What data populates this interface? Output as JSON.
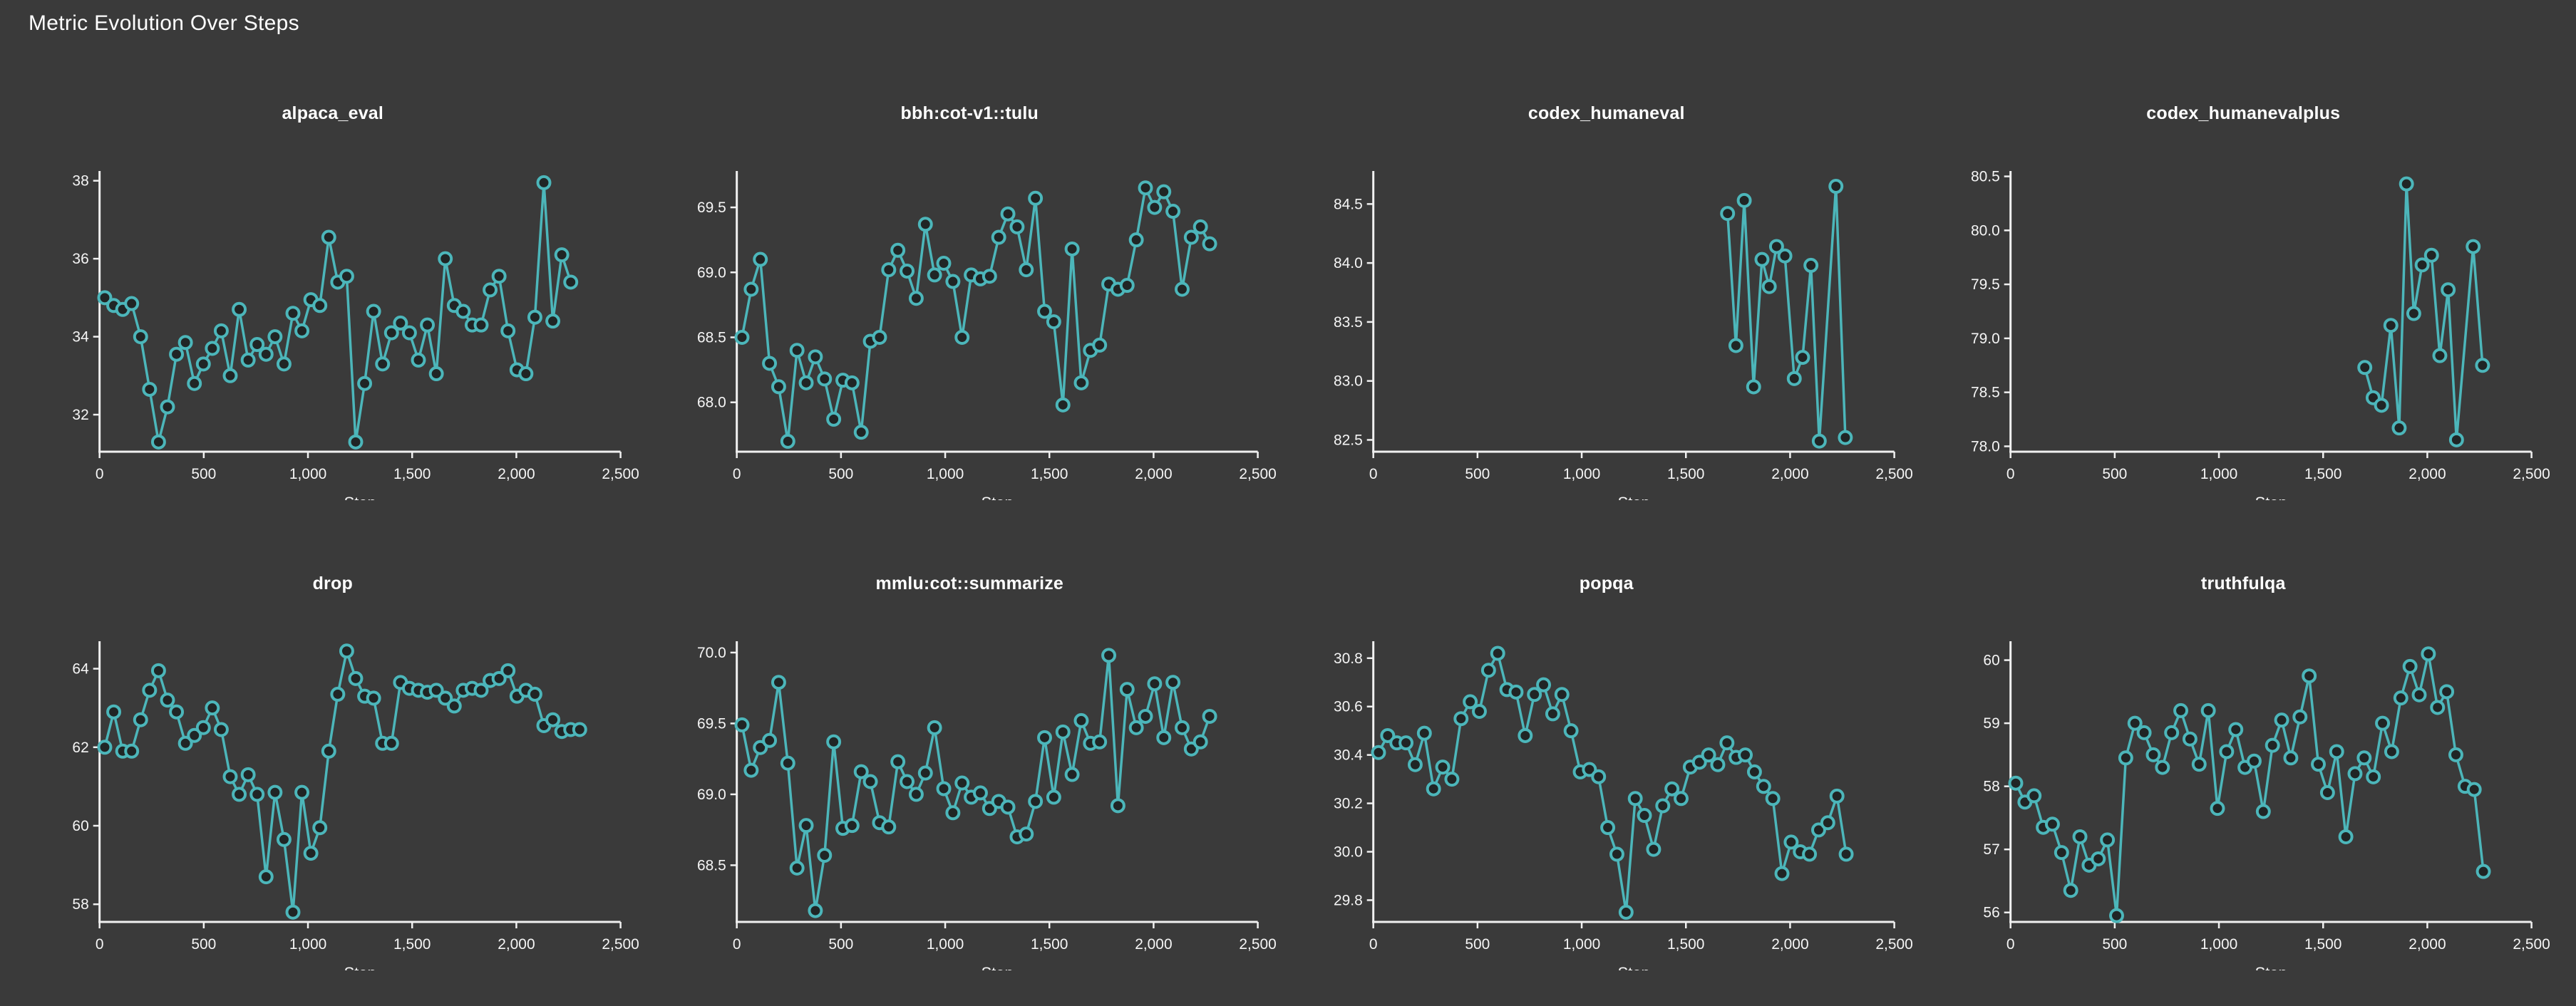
{
  "page": {
    "title": "Metric Evolution Over Steps"
  },
  "theme": {
    "background": "#3a3a3a",
    "line_color": "#4cb6ba",
    "marker_fill": "#202525",
    "axis_color": "#f0f0f0",
    "tick_label_color": "#f5f5f5",
    "title_color": "#ffffff"
  },
  "axis": {
    "xlabel": "Step",
    "xlim": [
      0,
      2500
    ],
    "x_ticks": [
      0,
      500,
      1000,
      1500,
      2000,
      2500
    ],
    "x_tick_labels": [
      "0",
      "500",
      "1,000",
      "1,500",
      "2,000",
      "2,500"
    ]
  },
  "chart_data": [
    {
      "type": "line",
      "title": "alpaca_eval",
      "xlabel": "Step",
      "ylim": [
        31.05,
        38.25
      ],
      "y_ticks": [
        32,
        34,
        36,
        38
      ],
      "y_tick_labels": [
        "32",
        "34",
        "36",
        "38"
      ],
      "x": [
        25,
        68,
        111,
        154,
        197,
        240,
        283,
        326,
        369,
        412,
        455,
        498,
        541,
        584,
        627,
        670,
        713,
        756,
        799,
        842,
        885,
        928,
        971,
        1014,
        1057,
        1100,
        1143,
        1186,
        1229,
        1272,
        1315,
        1358,
        1401,
        1444,
        1487,
        1530,
        1573,
        1616,
        1659,
        1702,
        1745,
        1788,
        1831,
        1874,
        1917,
        1960,
        2003,
        2046,
        2089,
        2132,
        2175,
        2218,
        2261
      ],
      "y": [
        35.0,
        34.8,
        34.7,
        34.85,
        34.0,
        32.65,
        31.3,
        32.2,
        33.55,
        33.85,
        32.8,
        33.3,
        33.7,
        34.15,
        33.0,
        34.7,
        33.4,
        33.8,
        33.55,
        34.0,
        33.3,
        34.6,
        34.15,
        34.95,
        34.8,
        36.55,
        35.4,
        35.55,
        31.3,
        32.8,
        34.65,
        33.3,
        34.1,
        34.35,
        34.1,
        33.4,
        34.3,
        33.05,
        36.0,
        34.8,
        34.65,
        34.3,
        34.3,
        35.2,
        35.55,
        34.15,
        33.15,
        33.05,
        34.5,
        37.95,
        34.4,
        36.1,
        35.4
      ]
    },
    {
      "type": "line",
      "title": "bbh:cot-v1::tulu",
      "xlabel": "Step",
      "ylim": [
        67.62,
        69.78
      ],
      "y_ticks": [
        68.0,
        68.5,
        69.0,
        69.5
      ],
      "y_tick_labels": [
        "68.0",
        "68.5",
        "69.0",
        "69.5"
      ],
      "x": [
        25,
        69,
        113,
        157,
        201,
        245,
        289,
        333,
        377,
        421,
        465,
        509,
        553,
        597,
        641,
        685,
        729,
        773,
        817,
        861,
        905,
        949,
        993,
        1037,
        1081,
        1125,
        1169,
        1213,
        1257,
        1301,
        1345,
        1389,
        1433,
        1477,
        1521,
        1565,
        1609,
        1653,
        1697,
        1741,
        1785,
        1829,
        1873,
        1917,
        1961,
        2005,
        2049,
        2093,
        2137,
        2181,
        2225,
        2269
      ],
      "y": [
        68.5,
        68.87,
        69.1,
        68.3,
        68.12,
        67.7,
        68.4,
        68.15,
        68.35,
        68.18,
        67.87,
        68.17,
        68.15,
        67.77,
        68.47,
        68.5,
        69.02,
        69.17,
        69.01,
        68.8,
        69.37,
        68.98,
        69.07,
        68.93,
        68.5,
        68.98,
        68.95,
        68.97,
        69.27,
        69.45,
        69.35,
        69.02,
        69.57,
        68.7,
        68.62,
        67.98,
        69.18,
        68.15,
        68.4,
        68.44,
        68.91,
        68.87,
        68.9,
        69.25,
        69.65,
        69.5,
        69.62,
        69.47,
        68.87,
        69.27,
        69.35,
        69.22
      ]
    },
    {
      "type": "line",
      "title": "codex_humaneval",
      "xlabel": "Step",
      "ylim": [
        82.4,
        84.78
      ],
      "y_ticks": [
        82.5,
        83.0,
        83.5,
        84.0,
        84.5
      ],
      "y_tick_labels": [
        "82.5",
        "83.0",
        "83.5",
        "84.0",
        "84.5"
      ],
      "x": [
        1700,
        1740,
        1780,
        1825,
        1865,
        1900,
        1935,
        1975,
        2020,
        2060,
        2100,
        2140,
        2220,
        2265
      ],
      "y": [
        84.42,
        83.3,
        84.53,
        82.95,
        84.03,
        83.8,
        84.14,
        84.06,
        83.02,
        83.2,
        83.98,
        82.49,
        84.65,
        82.52
      ]
    },
    {
      "type": "line",
      "title": "codex_humanevalplus",
      "xlabel": "Step",
      "ylim": [
        77.95,
        80.55
      ],
      "y_ticks": [
        78.0,
        78.5,
        79.0,
        79.5,
        80.0,
        80.5
      ],
      "y_tick_labels": [
        "78.0",
        "78.5",
        "79.0",
        "79.5",
        "80.0",
        "80.5"
      ],
      "x": [
        1700,
        1740,
        1780,
        1825,
        1865,
        1900,
        1935,
        1975,
        2020,
        2060,
        2100,
        2140,
        2220,
        2265
      ],
      "y": [
        78.73,
        78.45,
        78.38,
        79.12,
        78.17,
        80.43,
        79.23,
        79.68,
        79.77,
        78.84,
        79.45,
        78.06,
        79.85,
        78.75
      ]
    },
    {
      "type": "line",
      "title": "drop",
      "xlabel": "Step",
      "ylim": [
        57.55,
        64.7
      ],
      "y_ticks": [
        58,
        60,
        62,
        64
      ],
      "y_tick_labels": [
        "58",
        "60",
        "62",
        "64"
      ],
      "x": [
        25,
        68,
        111,
        154,
        197,
        240,
        283,
        326,
        369,
        412,
        455,
        498,
        541,
        584,
        627,
        670,
        713,
        756,
        799,
        842,
        885,
        928,
        971,
        1014,
        1057,
        1100,
        1143,
        1186,
        1229,
        1272,
        1315,
        1358,
        1401,
        1444,
        1487,
        1530,
        1573,
        1616,
        1659,
        1702,
        1745,
        1788,
        1831,
        1874,
        1917,
        1960,
        2003,
        2046,
        2089,
        2132,
        2175,
        2218,
        2261,
        2304
      ],
      "y": [
        62.0,
        62.9,
        61.9,
        61.9,
        62.7,
        63.45,
        63.95,
        63.2,
        62.9,
        62.1,
        62.3,
        62.5,
        63.0,
        62.45,
        61.25,
        60.8,
        61.3,
        60.8,
        58.7,
        60.85,
        59.65,
        57.8,
        60.85,
        59.3,
        59.95,
        61.9,
        63.35,
        64.45,
        63.75,
        63.3,
        63.25,
        62.1,
        62.1,
        63.65,
        63.5,
        63.45,
        63.4,
        63.45,
        63.25,
        63.05,
        63.45,
        63.5,
        63.45,
        63.7,
        63.75,
        63.95,
        63.3,
        63.45,
        63.35,
        62.55,
        62.7,
        62.4,
        62.45,
        62.45
      ]
    },
    {
      "type": "line",
      "title": "mmlu:cot::summarize",
      "xlabel": "Step",
      "ylim": [
        68.1,
        70.08
      ],
      "y_ticks": [
        68.5,
        69.0,
        69.5,
        70.0
      ],
      "y_tick_labels": [
        "68.5",
        "69.0",
        "69.5",
        "70.0"
      ],
      "x": [
        25,
        69,
        113,
        157,
        201,
        245,
        289,
        333,
        377,
        421,
        465,
        509,
        553,
        597,
        641,
        685,
        729,
        773,
        817,
        861,
        905,
        949,
        993,
        1037,
        1081,
        1125,
        1169,
        1213,
        1257,
        1301,
        1345,
        1389,
        1433,
        1477,
        1521,
        1565,
        1609,
        1653,
        1697,
        1741,
        1785,
        1829,
        1873,
        1917,
        1961,
        2005,
        2049,
        2093,
        2137,
        2181,
        2225,
        2269
      ],
      "y": [
        69.49,
        69.17,
        69.33,
        69.38,
        69.79,
        69.22,
        68.48,
        68.78,
        68.18,
        68.57,
        69.37,
        68.76,
        68.78,
        69.16,
        69.09,
        68.8,
        68.77,
        69.23,
        69.09,
        69.0,
        69.15,
        69.47,
        69.04,
        68.87,
        69.08,
        68.98,
        69.01,
        68.9,
        68.95,
        68.91,
        68.7,
        68.72,
        68.95,
        69.4,
        68.98,
        69.44,
        69.14,
        69.52,
        69.36,
        69.37,
        69.98,
        68.92,
        69.74,
        69.47,
        69.55,
        69.78,
        69.4,
        69.79,
        69.47,
        69.32,
        69.37,
        69.55
      ]
    },
    {
      "type": "line",
      "title": "popqa",
      "xlabel": "Step",
      "ylim": [
        29.71,
        30.87
      ],
      "y_ticks": [
        29.8,
        30.0,
        30.2,
        30.4,
        30.6,
        30.8
      ],
      "y_tick_labels": [
        "29.8",
        "30.0",
        "30.2",
        "30.4",
        "30.6",
        "30.8"
      ],
      "x": [
        25,
        69,
        113,
        157,
        201,
        245,
        289,
        333,
        377,
        421,
        465,
        509,
        553,
        597,
        641,
        685,
        729,
        773,
        817,
        861,
        905,
        949,
        993,
        1037,
        1081,
        1125,
        1169,
        1213,
        1257,
        1301,
        1345,
        1389,
        1433,
        1477,
        1521,
        1565,
        1609,
        1653,
        1697,
        1741,
        1785,
        1829,
        1873,
        1917,
        1961,
        2005,
        2049,
        2093,
        2137,
        2181,
        2225,
        2269
      ],
      "y": [
        30.41,
        30.48,
        30.45,
        30.45,
        30.36,
        30.49,
        30.26,
        30.35,
        30.3,
        30.55,
        30.62,
        30.58,
        30.75,
        30.82,
        30.67,
        30.66,
        30.48,
        30.65,
        30.69,
        30.57,
        30.65,
        30.5,
        30.33,
        30.34,
        30.31,
        30.1,
        29.99,
        29.75,
        30.22,
        30.15,
        30.01,
        30.19,
        30.26,
        30.22,
        30.35,
        30.37,
        30.4,
        30.36,
        30.45,
        30.39,
        30.4,
        30.33,
        30.27,
        30.22,
        29.91,
        30.04,
        30.0,
        29.99,
        30.09,
        30.12,
        30.23,
        29.99
      ]
    },
    {
      "type": "line",
      "title": "truthfulqa",
      "xlabel": "Step",
      "ylim": [
        55.85,
        60.3
      ],
      "y_ticks": [
        56,
        57,
        58,
        59,
        60
      ],
      "y_tick_labels": [
        "56",
        "57",
        "58",
        "59",
        "60"
      ],
      "x": [
        25,
        69,
        113,
        157,
        201,
        245,
        289,
        333,
        377,
        421,
        465,
        509,
        553,
        597,
        641,
        685,
        729,
        773,
        817,
        861,
        905,
        949,
        993,
        1037,
        1081,
        1125,
        1169,
        1213,
        1257,
        1301,
        1345,
        1389,
        1433,
        1477,
        1521,
        1565,
        1609,
        1653,
        1697,
        1741,
        1785,
        1829,
        1873,
        1917,
        1961,
        2005,
        2049,
        2093,
        2137,
        2181,
        2225,
        2269
      ],
      "y": [
        58.05,
        57.75,
        57.85,
        57.35,
        57.4,
        56.95,
        56.35,
        57.2,
        56.75,
        56.85,
        57.15,
        55.95,
        58.45,
        59.0,
        58.85,
        58.5,
        58.3,
        58.85,
        59.2,
        58.75,
        58.35,
        59.2,
        57.65,
        58.55,
        58.9,
        58.3,
        58.4,
        57.6,
        58.65,
        59.05,
        58.45,
        59.1,
        59.75,
        58.35,
        57.9,
        58.55,
        57.2,
        58.2,
        58.45,
        58.15,
        59.0,
        58.55,
        59.4,
        59.9,
        59.45,
        60.1,
        59.25,
        59.5,
        58.5,
        58.0,
        57.95,
        56.65
      ]
    }
  ]
}
